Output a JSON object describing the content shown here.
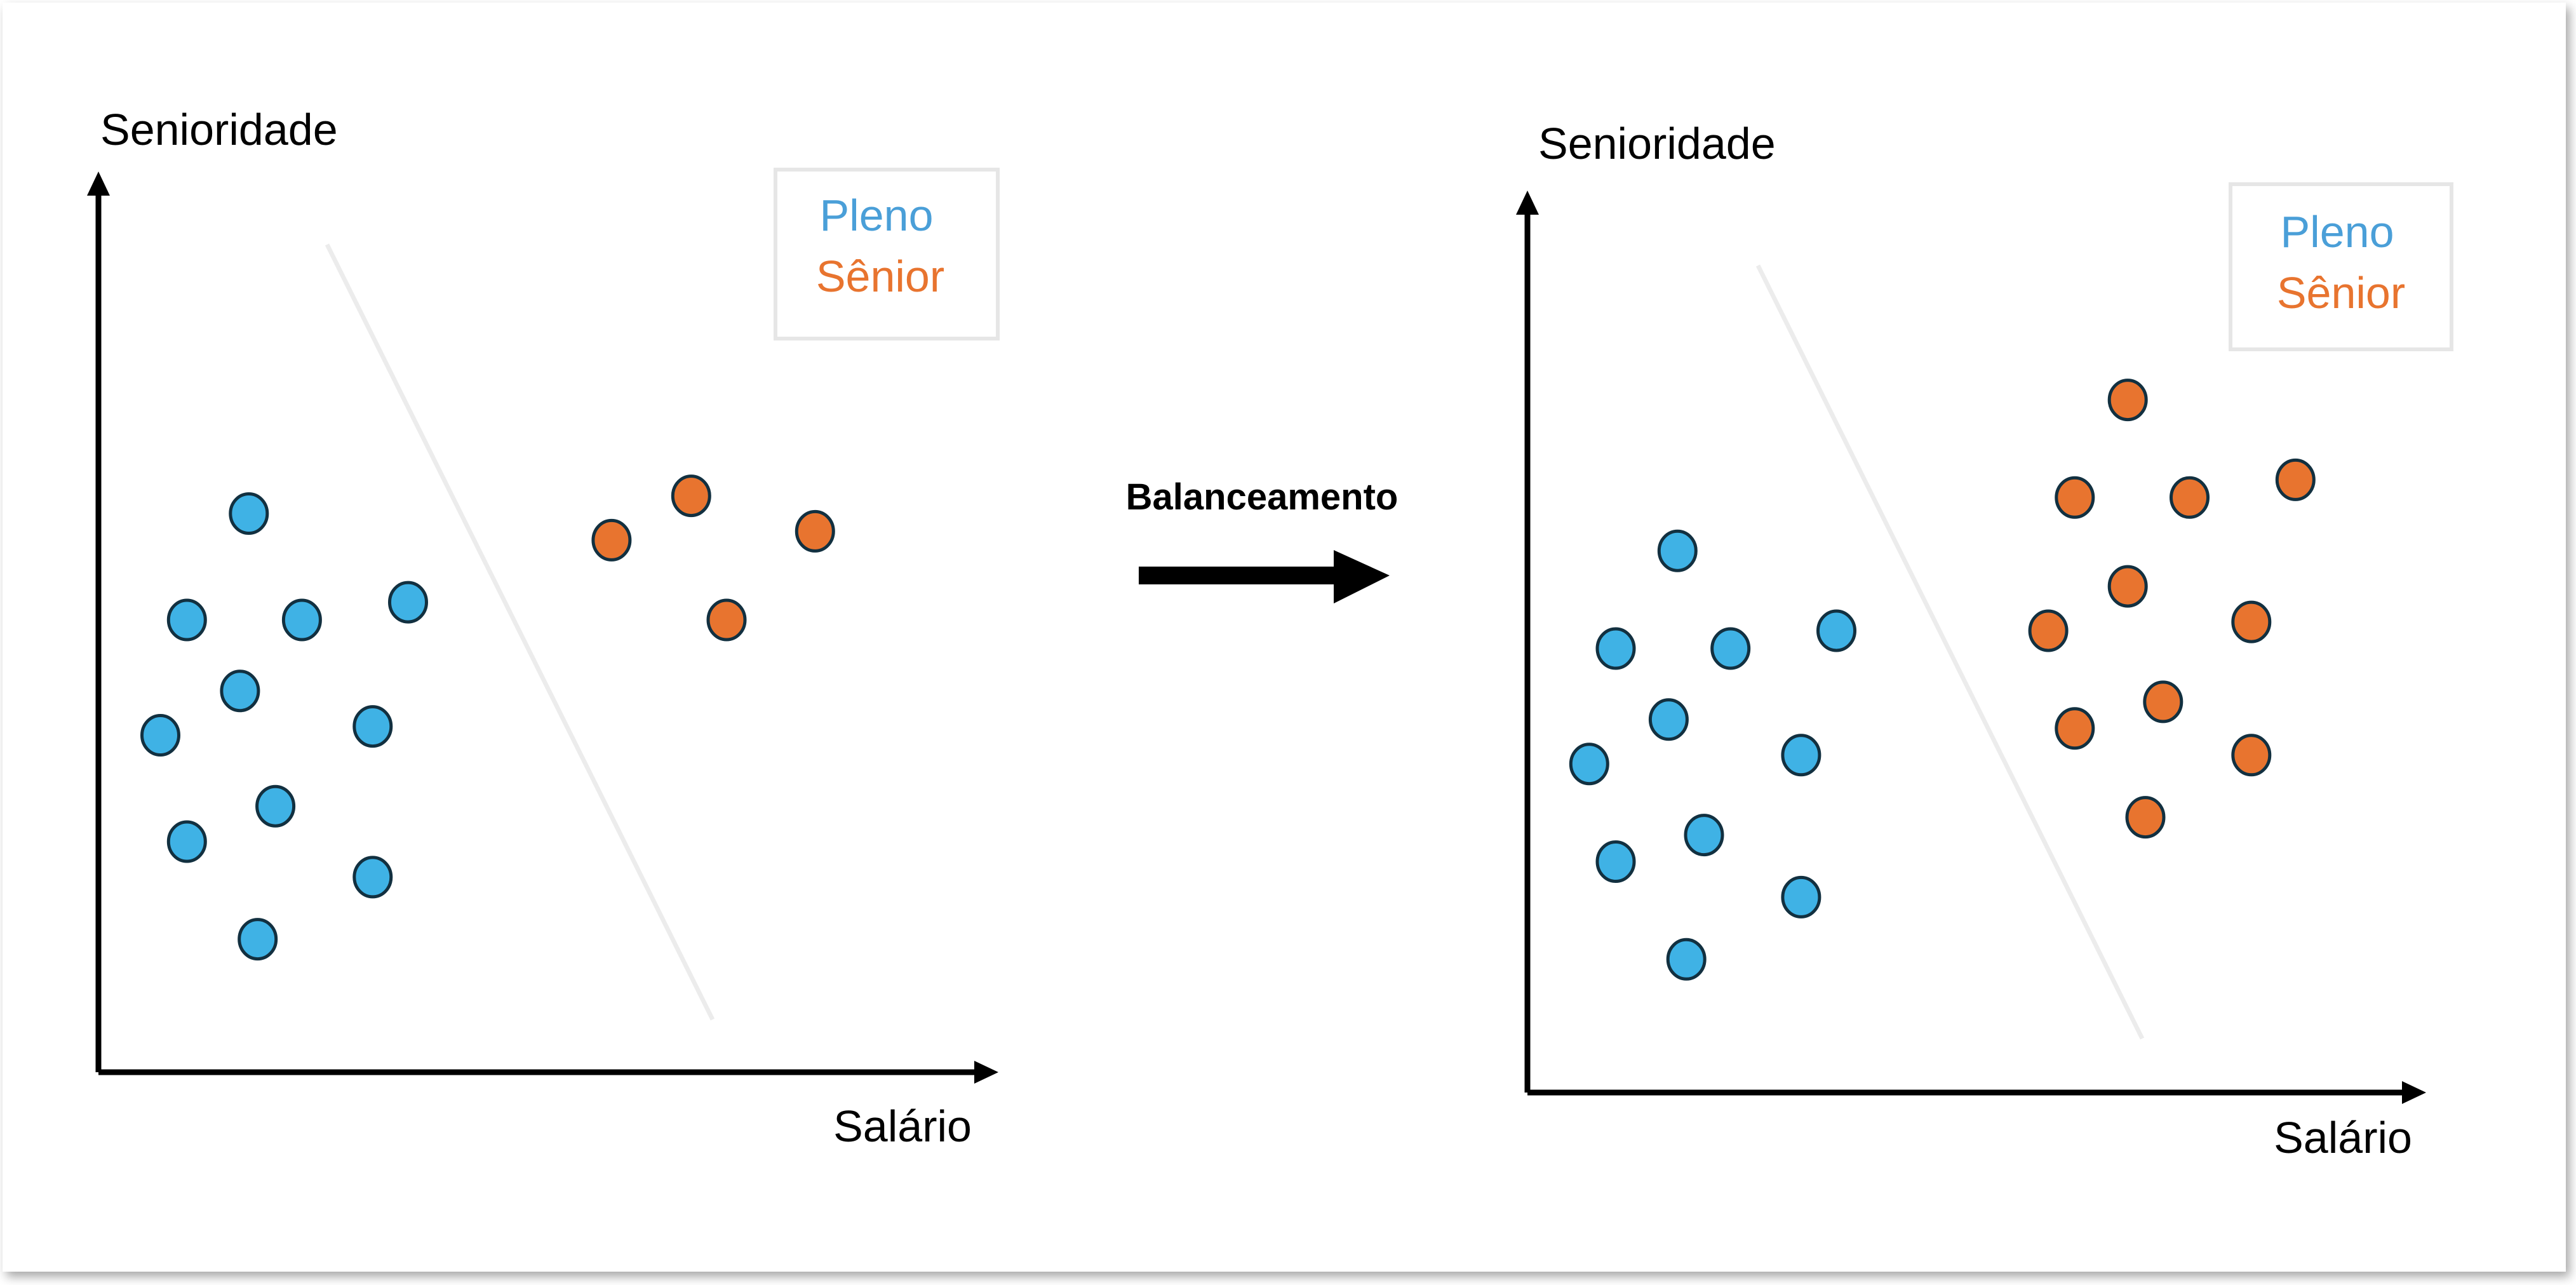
{
  "colors": {
    "pleno": "#4a9fd8",
    "pleno_point_fill": "#3fb2e5",
    "senior": "#e8742f",
    "axis": "#000000",
    "divider": "#ececec",
    "legend_border": "#e6e6e6",
    "point_stroke": "#123040"
  },
  "arrow_label": "Balanceamento",
  "charts": [
    {
      "ylabel": "Senioridade",
      "xlabel": "Salário",
      "legend": [
        {
          "label": "Pleno",
          "class": "pleno"
        },
        {
          "label": "Sênior",
          "class": "senior"
        }
      ],
      "points": {
        "pleno": [
          [
            0.17,
            0.63
          ],
          [
            0.1,
            0.51
          ],
          [
            0.23,
            0.51
          ],
          [
            0.35,
            0.53
          ],
          [
            0.16,
            0.43
          ],
          [
            0.07,
            0.38
          ],
          [
            0.31,
            0.39
          ],
          [
            0.1,
            0.26
          ],
          [
            0.2,
            0.3
          ],
          [
            0.31,
            0.22
          ],
          [
            0.18,
            0.15
          ]
        ],
        "senior": [
          [
            0.58,
            0.6
          ],
          [
            0.67,
            0.65
          ],
          [
            0.81,
            0.61
          ],
          [
            0.71,
            0.51
          ]
        ]
      }
    },
    {
      "ylabel": "Senioridade",
      "xlabel": "Salário",
      "legend": [
        {
          "label": "Pleno",
          "class": "pleno"
        },
        {
          "label": "Sênior",
          "class": "senior"
        }
      ],
      "points": {
        "pleno": [
          [
            0.17,
            0.61
          ],
          [
            0.1,
            0.5
          ],
          [
            0.23,
            0.5
          ],
          [
            0.35,
            0.52
          ],
          [
            0.16,
            0.42
          ],
          [
            0.07,
            0.37
          ],
          [
            0.31,
            0.38
          ],
          [
            0.1,
            0.26
          ],
          [
            0.2,
            0.29
          ],
          [
            0.31,
            0.22
          ],
          [
            0.18,
            0.15
          ]
        ],
        "senior": [
          [
            0.68,
            0.78
          ],
          [
            0.62,
            0.67
          ],
          [
            0.75,
            0.67
          ],
          [
            0.87,
            0.69
          ],
          [
            0.68,
            0.57
          ],
          [
            0.59,
            0.52
          ],
          [
            0.82,
            0.53
          ],
          [
            0.62,
            0.41
          ],
          [
            0.72,
            0.44
          ],
          [
            0.82,
            0.38
          ],
          [
            0.7,
            0.31
          ]
        ]
      }
    }
  ]
}
